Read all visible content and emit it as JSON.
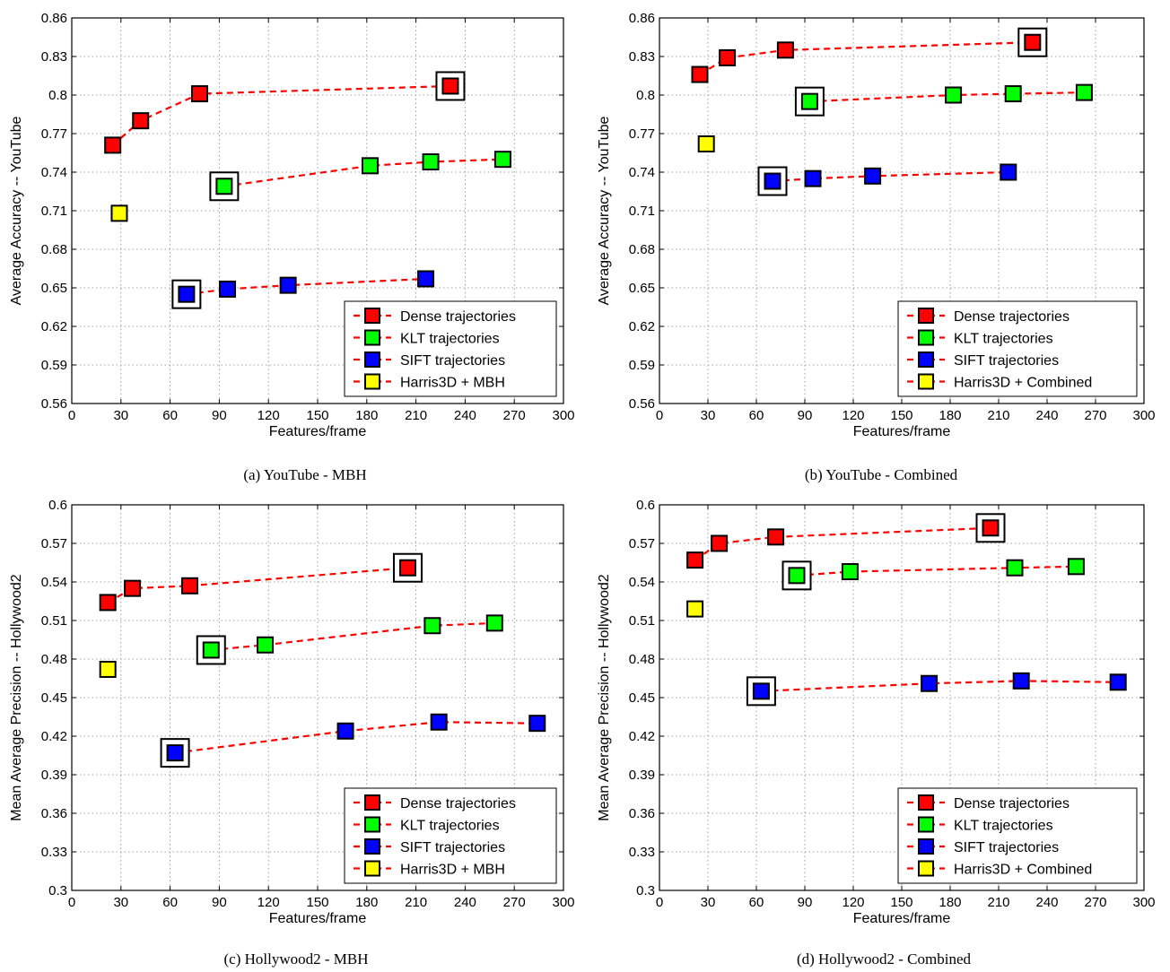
{
  "chart_data": [
    {
      "type": "scatter",
      "caption": "(a) YouTube - MBH",
      "xlabel": "Features/frame",
      "ylabel": "Average Accuracy -- YouTube",
      "xlim": [
        0,
        300
      ],
      "ylim": [
        0.56,
        0.86
      ],
      "xticks": [
        0,
        30,
        60,
        90,
        120,
        150,
        180,
        210,
        240,
        270,
        300
      ],
      "yticks": [
        0.56,
        0.59,
        0.62,
        0.65,
        0.68,
        0.71,
        0.74,
        0.77,
        0.8,
        0.83,
        0.86
      ],
      "ytick_labels": [
        "0.56",
        "0.59",
        "0.62",
        "0.65",
        "0.68",
        "0.71",
        "0.74",
        "0.77",
        "0.8",
        "0.83",
        "0.86"
      ],
      "grid": true,
      "legend_position": "bottom-right",
      "series": [
        {
          "name": "Dense trajectories",
          "color": "#ff0000",
          "x": [
            25,
            42,
            78,
            231
          ],
          "y": [
            0.761,
            0.78,
            0.801,
            0.807
          ],
          "highlight": 3
        },
        {
          "name": "KLT trajectories",
          "color": "#00ff00",
          "x": [
            93,
            182,
            219,
            263
          ],
          "y": [
            0.729,
            0.745,
            0.748,
            0.75
          ],
          "highlight": 0
        },
        {
          "name": "SIFT trajectories",
          "color": "#0000ff",
          "x": [
            70,
            95,
            132,
            216
          ],
          "y": [
            0.645,
            0.649,
            0.652,
            0.657
          ],
          "highlight": 0
        },
        {
          "name": "Harris3D + MBH",
          "color": "#ffff00",
          "x": [
            29
          ],
          "y": [
            0.708
          ],
          "highlight": null
        }
      ]
    },
    {
      "type": "scatter",
      "caption": "(b) YouTube - Combined",
      "xlabel": "Features/frame",
      "ylabel": "Average Accuracy -- YouTube",
      "xlim": [
        0,
        300
      ],
      "ylim": [
        0.56,
        0.86
      ],
      "xticks": [
        0,
        30,
        60,
        90,
        120,
        150,
        180,
        210,
        240,
        270,
        300
      ],
      "yticks": [
        0.56,
        0.59,
        0.62,
        0.65,
        0.68,
        0.71,
        0.74,
        0.77,
        0.8,
        0.83,
        0.86
      ],
      "ytick_labels": [
        "0.56",
        "0.59",
        "0.62",
        "0.65",
        "0.68",
        "0.71",
        "0.74",
        "0.77",
        "0.8",
        "0.83",
        "0.86"
      ],
      "grid": true,
      "legend_position": "bottom-right",
      "series": [
        {
          "name": "Dense trajectories",
          "color": "#ff0000",
          "x": [
            25,
            42,
            78,
            231
          ],
          "y": [
            0.816,
            0.829,
            0.835,
            0.841
          ],
          "highlight": 3
        },
        {
          "name": "KLT trajectories",
          "color": "#00ff00",
          "x": [
            93,
            182,
            219,
            263
          ],
          "y": [
            0.795,
            0.8,
            0.801,
            0.802
          ],
          "highlight": 0
        },
        {
          "name": "SIFT trajectories",
          "color": "#0000ff",
          "x": [
            70,
            95,
            132,
            216
          ],
          "y": [
            0.733,
            0.735,
            0.737,
            0.74
          ],
          "highlight": 0
        },
        {
          "name": "Harris3D + Combined",
          "color": "#ffff00",
          "x": [
            29
          ],
          "y": [
            0.762
          ],
          "highlight": null
        }
      ]
    },
    {
      "type": "scatter",
      "caption": "(c) Hollywood2 - MBH",
      "xlabel": "Features/frame",
      "ylabel": "Mean Average Precision -- Hollywood2",
      "xlim": [
        0,
        300
      ],
      "ylim": [
        0.3,
        0.6
      ],
      "xticks": [
        0,
        30,
        60,
        90,
        120,
        150,
        180,
        210,
        240,
        270,
        300
      ],
      "yticks": [
        0.3,
        0.33,
        0.36,
        0.39,
        0.42,
        0.45,
        0.48,
        0.51,
        0.54,
        0.57,
        0.6
      ],
      "ytick_labels": [
        "0.3",
        "0.33",
        "0.36",
        "0.39",
        "0.42",
        "0.45",
        "0.48",
        "0.51",
        "0.54",
        "0.57",
        "0.6"
      ],
      "grid": true,
      "legend_position": "bottom-right",
      "series": [
        {
          "name": "Dense trajectories",
          "color": "#ff0000",
          "x": [
            22,
            37,
            72,
            205
          ],
          "y": [
            0.524,
            0.535,
            0.537,
            0.551
          ],
          "highlight": 3
        },
        {
          "name": "KLT trajectories",
          "color": "#00ff00",
          "x": [
            85,
            118,
            220,
            258
          ],
          "y": [
            0.487,
            0.491,
            0.506,
            0.508
          ],
          "highlight": 0
        },
        {
          "name": "SIFT trajectories",
          "color": "#0000ff",
          "x": [
            63,
            167,
            224,
            284
          ],
          "y": [
            0.407,
            0.424,
            0.431,
            0.43
          ],
          "highlight": 0
        },
        {
          "name": "Harris3D + MBH",
          "color": "#ffff00",
          "x": [
            22
          ],
          "y": [
            0.472
          ],
          "highlight": null
        }
      ]
    },
    {
      "type": "scatter",
      "caption": "(d) Hollywood2 - Combined",
      "xlabel": "Features/frame",
      "ylabel": "Mean Average Precision -- Hollywood2",
      "xlim": [
        0,
        300
      ],
      "ylim": [
        0.3,
        0.6
      ],
      "xticks": [
        0,
        30,
        60,
        90,
        120,
        150,
        180,
        210,
        240,
        270,
        300
      ],
      "yticks": [
        0.3,
        0.33,
        0.36,
        0.39,
        0.42,
        0.45,
        0.48,
        0.51,
        0.54,
        0.57,
        0.6
      ],
      "ytick_labels": [
        "0.3",
        "0.33",
        "0.36",
        "0.39",
        "0.42",
        "0.45",
        "0.48",
        "0.51",
        "0.54",
        "0.57",
        "0.6"
      ],
      "grid": true,
      "legend_position": "bottom-right",
      "series": [
        {
          "name": "Dense trajectories",
          "color": "#ff0000",
          "x": [
            22,
            37,
            72,
            205
          ],
          "y": [
            0.557,
            0.57,
            0.575,
            0.582
          ],
          "highlight": 3
        },
        {
          "name": "KLT trajectories",
          "color": "#00ff00",
          "x": [
            85,
            118,
            220,
            258
          ],
          "y": [
            0.545,
            0.548,
            0.551,
            0.552
          ],
          "highlight": 0
        },
        {
          "name": "SIFT trajectories",
          "color": "#0000ff",
          "x": [
            63,
            167,
            224,
            284
          ],
          "y": [
            0.455,
            0.461,
            0.463,
            0.462
          ],
          "highlight": 0
        },
        {
          "name": "Harris3D + Combined",
          "color": "#ffff00",
          "x": [
            22
          ],
          "y": [
            0.519
          ],
          "highlight": null
        }
      ]
    }
  ]
}
